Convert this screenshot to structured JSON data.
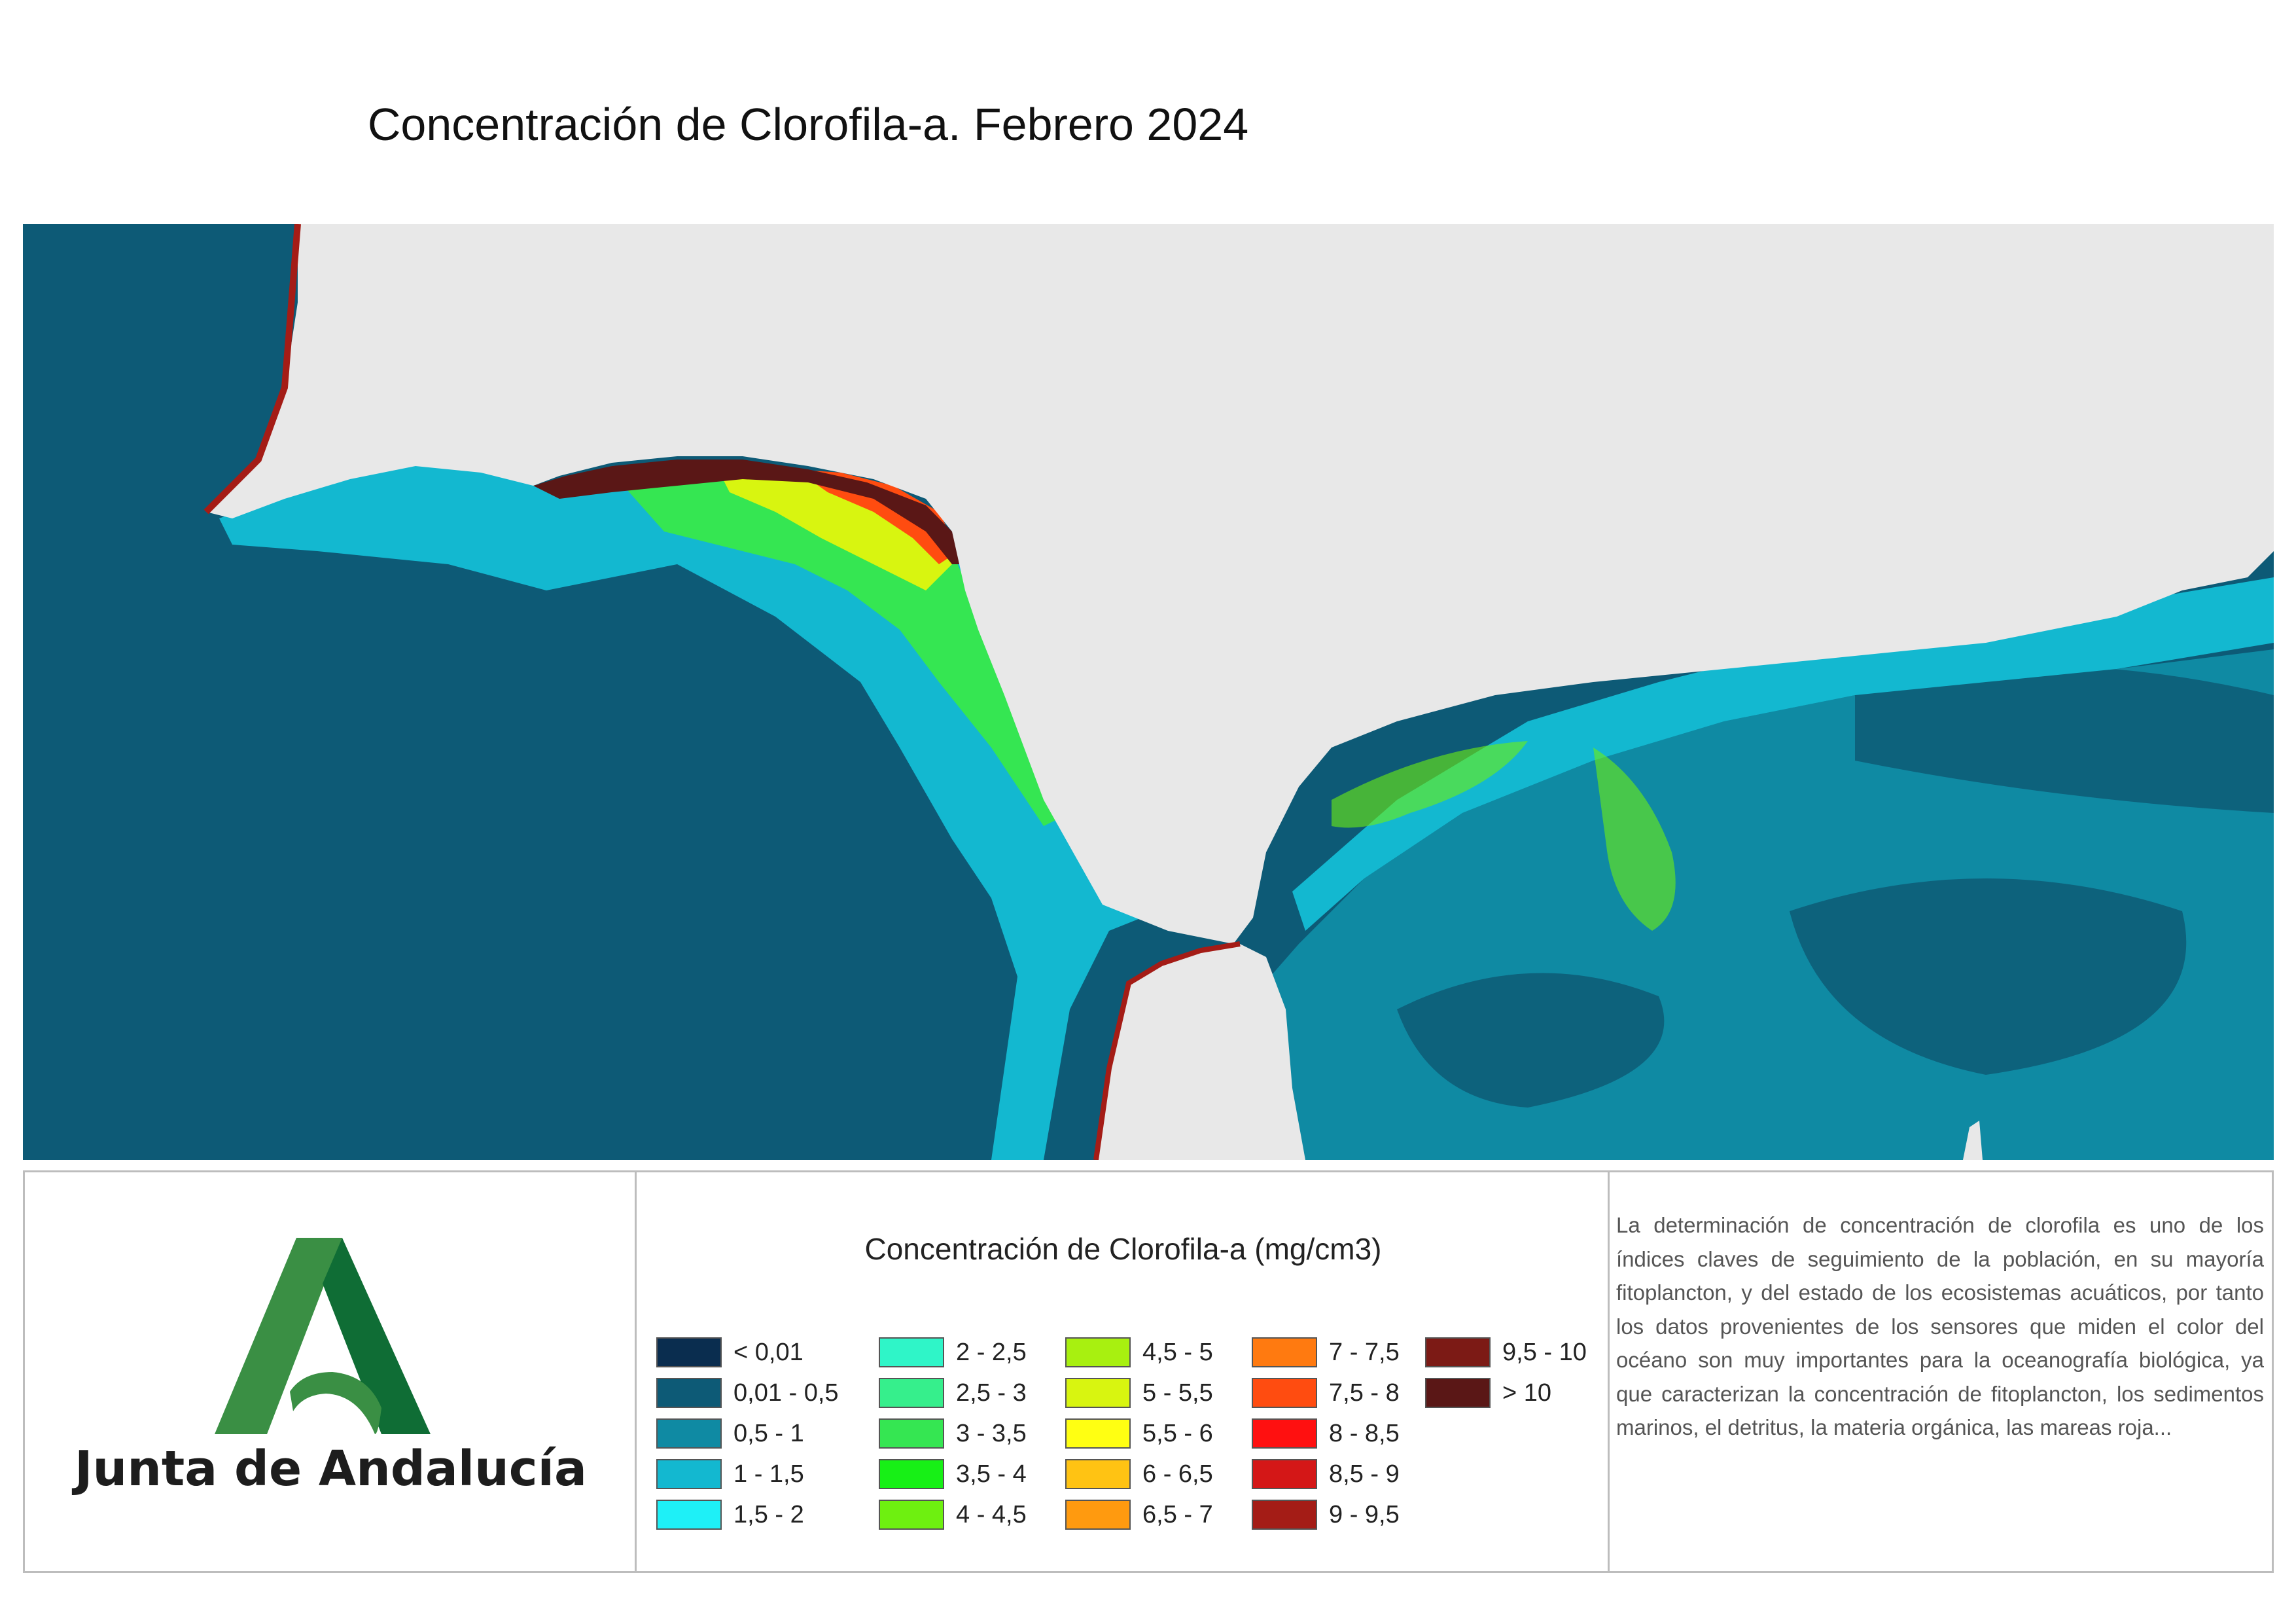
{
  "title": "Concentración de Clorofila-a. Febrero 2024",
  "logo": {
    "text": "Junta de Andalucía",
    "icon": "junta-andalucia-a-icon",
    "colors": {
      "light_green": "#3a8f44",
      "dark_green": "#0f6d35"
    }
  },
  "legend": {
    "title": "Concentración de Clorofila-a (mg/cm3)",
    "items": [
      {
        "label": "< 0,01",
        "color": "#0a2d4f"
      },
      {
        "label": "0,01 - 0,5",
        "color": "#0d5a76"
      },
      {
        "label": "0,5 - 1",
        "color": "#0f8aa3"
      },
      {
        "label": "1 - 1,5",
        "color": "#13b8d0"
      },
      {
        "label": "1,5 - 2",
        "color": "#1ef0f7"
      },
      {
        "label": "2 - 2,5",
        "color": "#2ff5c8"
      },
      {
        "label": "2,5 - 3",
        "color": "#36ef8c"
      },
      {
        "label": "3 - 3,5",
        "color": "#35e652"
      },
      {
        "label": "3,5 - 4",
        "color": "#17f016"
      },
      {
        "label": "4 - 4,5",
        "color": "#6ef010"
      },
      {
        "label": "4,5 - 5",
        "color": "#a8f010"
      },
      {
        "label": "5 - 5,5",
        "color": "#d8f510"
      },
      {
        "label": "5,5 - 6",
        "color": "#ffff12"
      },
      {
        "label": "6 - 6,5",
        "color": "#ffc313"
      },
      {
        "label": "6,5 - 7",
        "color": "#ff9a0f"
      },
      {
        "label": "7 - 7,5",
        "color": "#ff7a10"
      },
      {
        "label": "7,5 - 8",
        "color": "#ff4c10"
      },
      {
        "label": "8 - 8,5",
        "color": "#ff1010"
      },
      {
        "label": "8,5 - 9",
        "color": "#d41717"
      },
      {
        "label": "9 - 9,5",
        "color": "#a41c16"
      },
      {
        "label": "9,5 - 10",
        "color": "#7c1a15"
      },
      {
        "label": "> 10",
        "color": "#5a1716"
      }
    ]
  },
  "description": "La determinación de concentración de clorofila es uno de los índices claves de seguimiento de la población, en su mayoría fitoplancton, y del estado de los ecosistemas acuáticos, por tanto los datos provenientes de los sensores que miden el color del océano son muy importantes para la oceanografía biológica, ya que caracterizan la concentración de fitoplancton, los sedimentos marinos, el detritus, la materia orgánica, las mareas roja...",
  "map": {
    "land_color": "#e8e8e8",
    "ocean_color": "#0d5a76"
  }
}
